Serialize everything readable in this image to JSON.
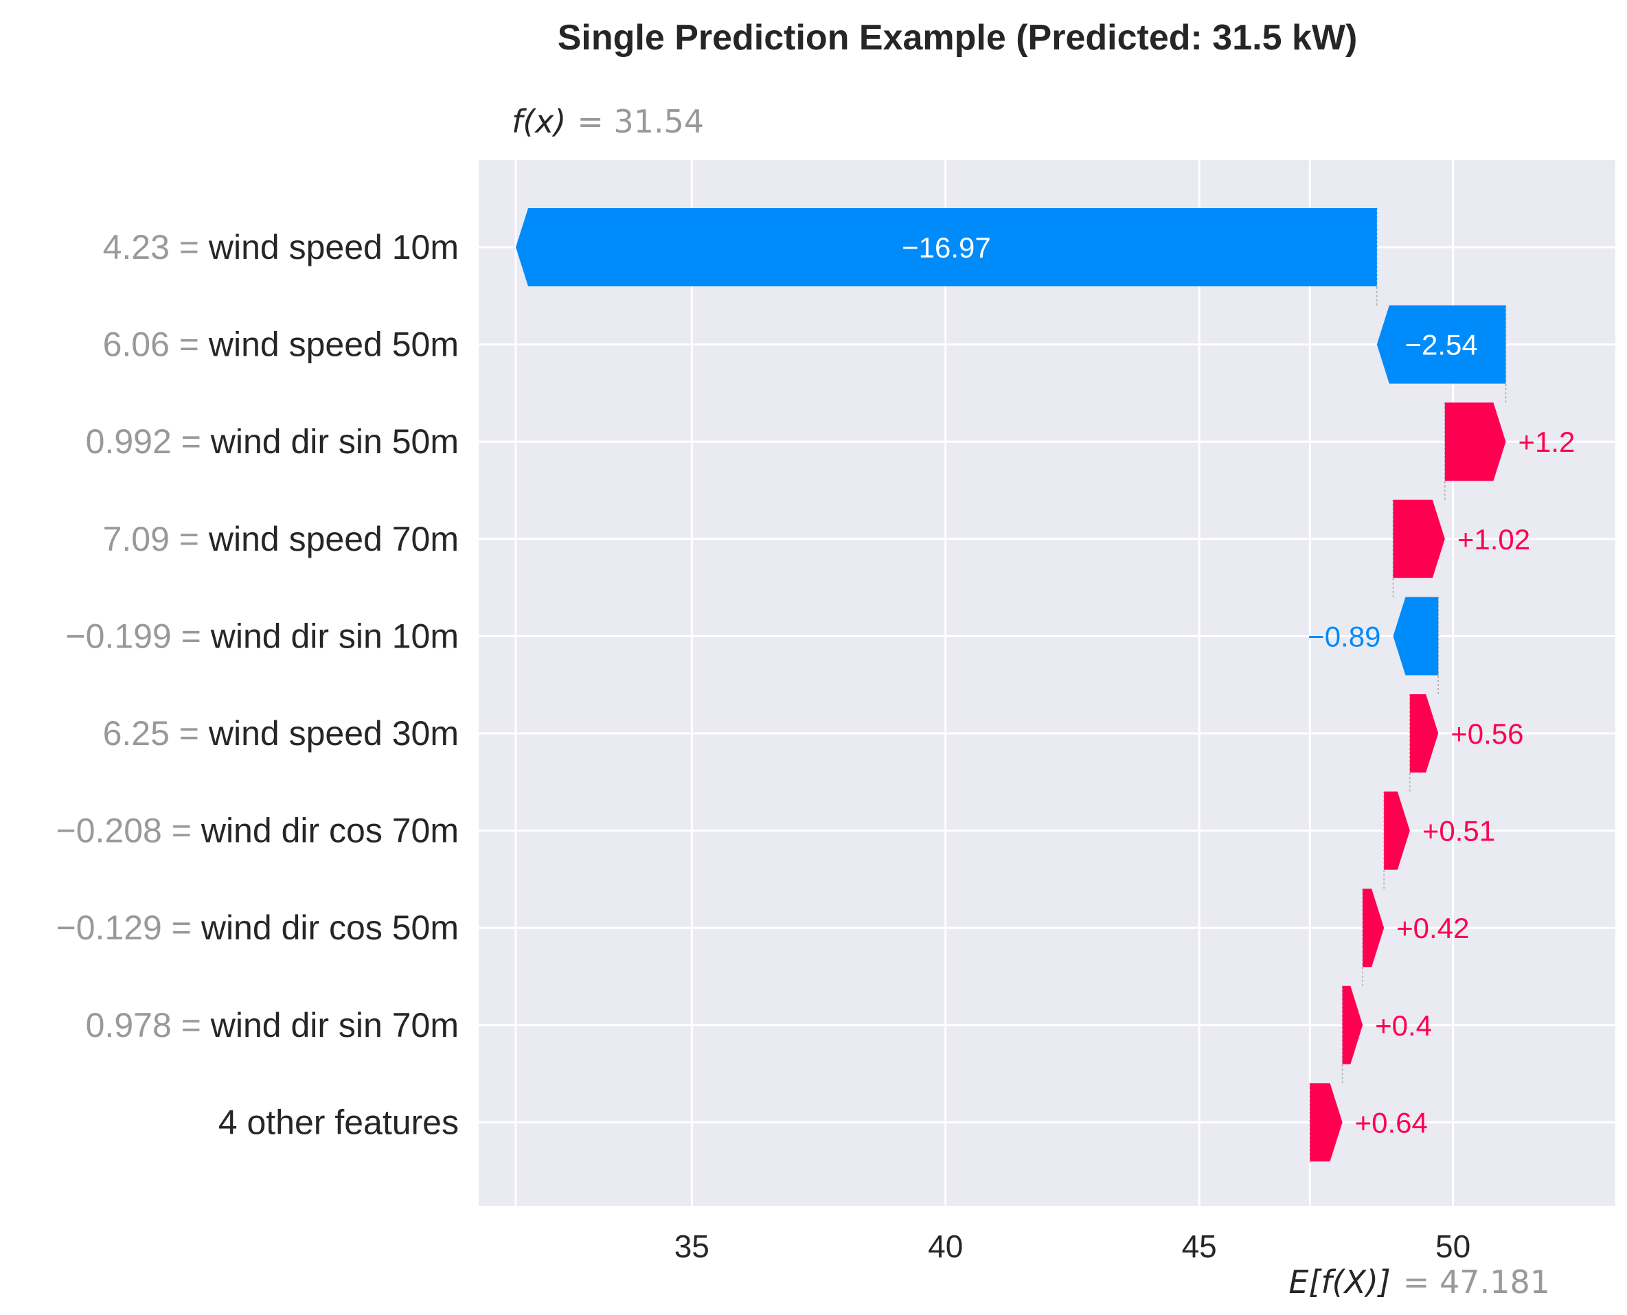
{
  "chart_data": {
    "type": "waterfall",
    "title": "Single Prediction Example (Predicted: 31.5 kW)",
    "fx_label": "f(x)",
    "fx_value": "= 31.54",
    "base_label": "E[f(X)]",
    "base_value_text": "= 47.181",
    "base_value": 47.181,
    "xlim": [
      30.8,
      53.2
    ],
    "xticks": [
      35,
      40,
      45,
      50
    ],
    "xtick_labels": [
      "35",
      "40",
      "45",
      "50"
    ],
    "grid": true,
    "colors": {
      "positive": "#ff0051",
      "negative": "#008bfb",
      "background": "#eaeaf2",
      "grid": "#ffffff"
    },
    "features": [
      {
        "value": "4.23 =",
        "name": "wind speed 10m",
        "shap": -16.97,
        "label": "−16.97"
      },
      {
        "value": "6.06 =",
        "name": "wind speed 50m",
        "shap": -2.54,
        "label": "−2.54"
      },
      {
        "value": "0.992 =",
        "name": "wind dir sin 50m",
        "shap": 1.2,
        "label": "+1.2"
      },
      {
        "value": "7.09 =",
        "name": "wind speed 70m",
        "shap": 1.02,
        "label": "+1.02"
      },
      {
        "value": "−0.199 =",
        "name": "wind dir sin 10m",
        "shap": -0.89,
        "label": "−0.89"
      },
      {
        "value": "6.25 =",
        "name": "wind speed 30m",
        "shap": 0.56,
        "label": "+0.56"
      },
      {
        "value": "−0.208 =",
        "name": "wind dir cos 70m",
        "shap": 0.51,
        "label": "+0.51"
      },
      {
        "value": "−0.129 =",
        "name": "wind dir cos 50m",
        "shap": 0.42,
        "label": "+0.42"
      },
      {
        "value": "0.978 =",
        "name": "wind dir sin 70m",
        "shap": 0.4,
        "label": "+0.4"
      },
      {
        "value": "",
        "name": "4 other features",
        "shap": 0.64,
        "label": "+0.64"
      }
    ]
  }
}
